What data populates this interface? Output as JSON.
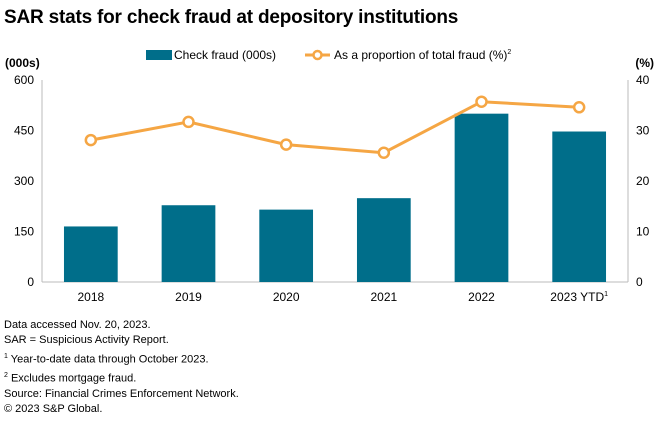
{
  "title": "SAR stats for check fraud at depository institutions",
  "chart_data": {
    "type": "bar+line",
    "categories": [
      "2018",
      "2019",
      "2020",
      "2021",
      "2022",
      "2023 YTD"
    ],
    "category_footnotes": [
      "",
      "",
      "",
      "",
      "",
      "1"
    ],
    "series": [
      {
        "name": "Check fraud (000s)",
        "type": "bar",
        "axis": "left",
        "color": "#006e8a",
        "values": [
          165,
          228,
          215,
          249,
          500,
          447
        ]
      },
      {
        "name": "As a proportion of total fraud (%)",
        "name_footnote": "2",
        "type": "line",
        "axis": "right",
        "color": "#f5a644",
        "values": [
          28.1,
          31.7,
          27.2,
          25.6,
          35.7,
          34.6
        ]
      }
    ],
    "left_axis": {
      "label": "(000s)",
      "range": [
        0,
        600
      ],
      "ticks": [
        0,
        150,
        300,
        450,
        600
      ]
    },
    "right_axis": {
      "label": "(%)",
      "range": [
        0,
        40
      ],
      "ticks": [
        0,
        10,
        20,
        30,
        40
      ]
    },
    "grid": false,
    "legend_position": "top"
  },
  "notes": [
    "Data accessed Nov. 20, 2023.",
    "SAR = Suspicious Activity Report.",
    {
      "sup": "1",
      "text": " Year-to-date data through October 2023."
    },
    {
      "sup": "2",
      "text": " Excludes mortgage fraud."
    },
    "Source: Financial Crimes Enforcement Network.",
    "© 2023 S&P Global."
  ]
}
